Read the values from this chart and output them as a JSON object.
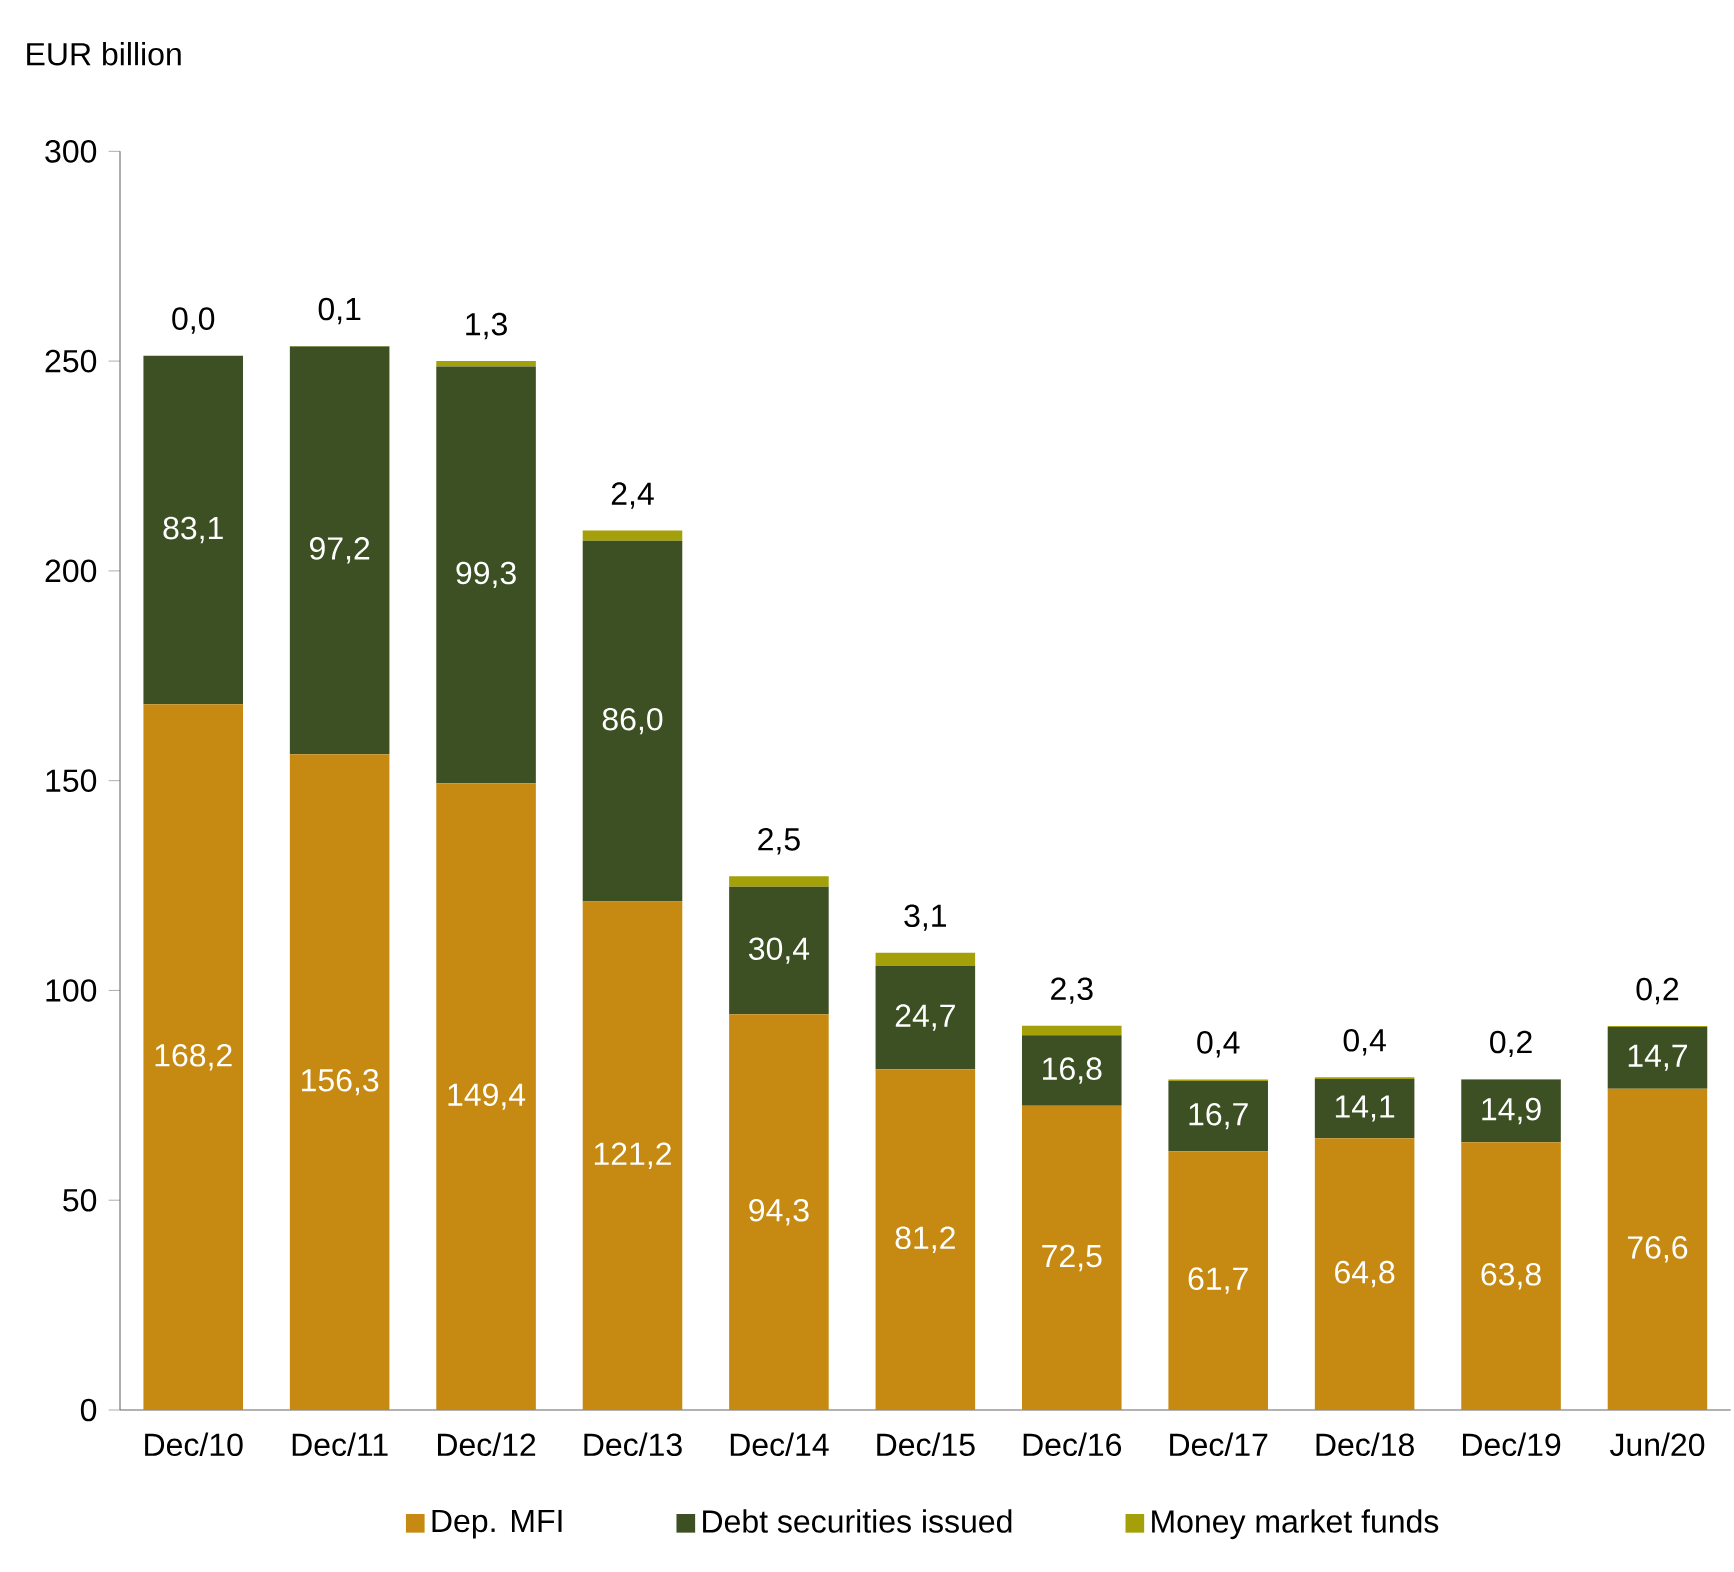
{
  "chart_data": {
    "type": "bar",
    "stacked": true,
    "ylabel": "EUR billion",
    "categories": [
      "Dec/10",
      "Dec/11",
      "Dec/12",
      "Dec/13",
      "Dec/14",
      "Dec/15",
      "Dec/16",
      "Dec/17",
      "Dec/18",
      "Dec/19",
      "Jun/20"
    ],
    "series": [
      {
        "name": "Dep. MFI",
        "color": "#c68a12",
        "values": [
          168.2,
          156.3,
          149.4,
          121.2,
          94.3,
          81.2,
          72.5,
          61.7,
          64.8,
          63.8,
          76.6
        ],
        "value_labels": [
          "168,2",
          "156,3",
          "149,4",
          "121,2",
          "94,3",
          "81,2",
          "72,5",
          "61,7",
          "64,8",
          "63,8",
          "76,6"
        ]
      },
      {
        "name": "Debt securities issued",
        "color": "#3d5024",
        "values": [
          83.1,
          97.2,
          99.3,
          86.0,
          30.4,
          24.7,
          16.8,
          16.7,
          14.1,
          14.9,
          14.7
        ],
        "value_labels": [
          "83,1",
          "97,2",
          "99,3",
          "86,0",
          "30,4",
          "24,7",
          "16,8",
          "16,7",
          "14,1",
          "14,9",
          "14,7"
        ]
      },
      {
        "name": "Money market funds",
        "color": "#a3a00a",
        "values": [
          0.0,
          0.1,
          1.3,
          2.4,
          2.5,
          3.1,
          2.3,
          0.4,
          0.4,
          0.2,
          0.2
        ],
        "value_labels": [
          "0,0",
          "0,1",
          "1,3",
          "2,4",
          "2,5",
          "3,1",
          "2,3",
          "0,4",
          "0,4",
          "0,2",
          "0,2"
        ]
      }
    ],
    "ylim": [
      0,
      300
    ],
    "yticks": [
      0,
      50,
      100,
      150,
      200,
      250,
      300
    ],
    "legend": "bottom"
  }
}
